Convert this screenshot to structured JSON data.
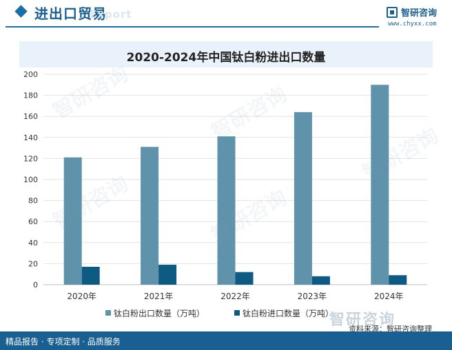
{
  "header": {
    "title": "进出口贸易",
    "watermark": "Export"
  },
  "brand": {
    "name": "智研咨询",
    "url": "www.chyxx.com"
  },
  "watermark_text": "智研咨询",
  "chart_data": {
    "type": "bar",
    "title": "2020-2024年中国钛白粉进出口数量",
    "categories": [
      "2020年",
      "2021年",
      "2022年",
      "2023年",
      "2024年"
    ],
    "series": [
      {
        "name": "钛白粉出口数量（万吨）",
        "values": [
          121,
          131,
          141,
          164,
          190
        ],
        "color": "#5f93ac"
      },
      {
        "name": "钛白粉进口数量（万吨）",
        "values": [
          17,
          19,
          12,
          8,
          9
        ],
        "color": "#0d5a82"
      }
    ],
    "ylim": [
      0,
      200
    ],
    "yticks": [
      0,
      20,
      40,
      60,
      80,
      100,
      120,
      140,
      160,
      180,
      200
    ],
    "xlabel": "",
    "ylabel": "",
    "grid": true,
    "legend": "bottom"
  },
  "footer": {
    "left": "精品报告 · 专项定制 · 品质服务",
    "watermark": "智研咨询",
    "source": "资料来源：智研咨询整理"
  }
}
